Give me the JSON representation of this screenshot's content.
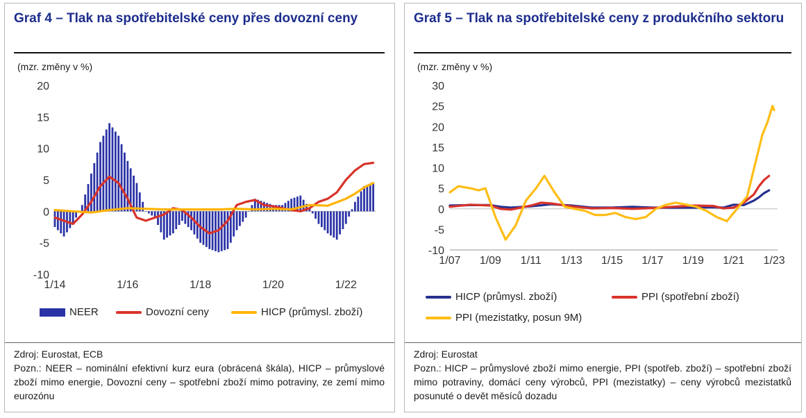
{
  "left": {
    "title": "Graf 4 – Tlak na spotřebitelské ceny přes dovozní ceny",
    "unit": "(mzr. změny v %)",
    "legend": [
      "NEER",
      "Dovozní ceny",
      "HICP (průmysl. zboží)"
    ],
    "source": "Zdroj: Eurostat, ECB",
    "note": "Pozn.: NEER – nominální efektivní kurz eura (obrácená škála), HICP – průmyslové zboží mimo energie, Dovozní ceny – spotřební zboží mimo potraviny, ze zemí mimo eurozónu"
  },
  "right": {
    "title": "Graf 5 – Tlak na spotřebitelské ceny z produkčního sektoru",
    "unit": "(mzr. změny v %)",
    "legend": [
      "HICP (průmysl. zboží)",
      "PPI (spotřební zboží)",
      "PPI (mezistatky, posun 9M)"
    ],
    "source": "Zdroj: Eurostat",
    "note": "Pozn.: HICP – průmyslové zboží mimo energie, PPI (spotřeb. zboží) – spotřební zboží mimo potraviny, domácí ceny výrobců, PPI (mezistatky) – ceny výrobců mezistatků posunuté o devět měsíců dozadu"
  },
  "colors": {
    "neer": "#2b33a6",
    "import": "#d8332a",
    "hicp_yellow": "#ffb300",
    "hicp_navy": "#27308f",
    "ppi_red": "#d8332a",
    "ppi_inter": "#ffbd14",
    "title": "#1c2c8c"
  },
  "chart_data": [
    {
      "type": "bar+line",
      "title": "Graf 4 – Tlak na spotřebitelské ceny přes dovozní ceny",
      "ylabel": "(mzr. změny v %)",
      "ylim": [
        -10,
        20
      ],
      "yticks": [
        -10,
        -5,
        0,
        5,
        10,
        15,
        20
      ],
      "xlim": [
        "2014-01",
        "2022-11"
      ],
      "xticks": [
        "1/14",
        "1/16",
        "1/18",
        "1/20",
        "1/22"
      ],
      "legend_position": "bottom",
      "series": [
        {
          "name": "NEER",
          "kind": "bar",
          "x": [
            "2014-01",
            "2014-04",
            "2014-07",
            "2014-10",
            "2015-01",
            "2015-04",
            "2015-07",
            "2015-10",
            "2016-01",
            "2016-04",
            "2016-07",
            "2016-10",
            "2017-01",
            "2017-04",
            "2017-07",
            "2017-10",
            "2018-01",
            "2018-04",
            "2018-07",
            "2018-10",
            "2019-01",
            "2019-04",
            "2019-07",
            "2019-10",
            "2020-01",
            "2020-04",
            "2020-07",
            "2020-10",
            "2021-01",
            "2021-04",
            "2021-07",
            "2021-10",
            "2022-01",
            "2022-04",
            "2022-07",
            "2022-10"
          ],
          "values": [
            -2.5,
            -4,
            -2,
            1,
            6,
            11,
            14,
            12,
            8,
            4.5,
            0,
            -1,
            -4.5,
            -3.5,
            -1.5,
            -3,
            -5,
            -6,
            -6.5,
            -6,
            -3,
            -1,
            2,
            1.5,
            1,
            1,
            2,
            2.5,
            0.5,
            -2,
            -3.5,
            -4.5,
            -2,
            1.5,
            4,
            4.5
          ]
        },
        {
          "name": "Dovozní ceny",
          "kind": "line",
          "x": [
            "2014-01",
            "2014-04",
            "2014-07",
            "2014-10",
            "2015-01",
            "2015-04",
            "2015-07",
            "2015-10",
            "2016-01",
            "2016-04",
            "2016-07",
            "2016-10",
            "2017-01",
            "2017-04",
            "2017-07",
            "2017-10",
            "2018-01",
            "2018-04",
            "2018-07",
            "2018-10",
            "2019-01",
            "2019-04",
            "2019-07",
            "2019-10",
            "2020-01",
            "2020-04",
            "2020-07",
            "2020-10",
            "2021-01",
            "2021-04",
            "2021-07",
            "2021-10",
            "2022-01",
            "2022-04",
            "2022-07",
            "2022-10"
          ],
          "values": [
            -1,
            -1.5,
            -2,
            -0.5,
            1.5,
            4,
            5.5,
            4.5,
            2,
            -1,
            -1.5,
            -1,
            -0.5,
            0.5,
            0.2,
            -1,
            -2.5,
            -3.5,
            -3,
            -1.5,
            1,
            1.5,
            1.8,
            1,
            0.8,
            0.5,
            0.2,
            0,
            0.5,
            1.5,
            2,
            3,
            5,
            6.5,
            7.5,
            7.7
          ]
        },
        {
          "name": "HICP (průmysl. zboží)",
          "kind": "line",
          "x": [
            "2014-01",
            "2014-07",
            "2015-01",
            "2015-07",
            "2016-01",
            "2016-07",
            "2017-01",
            "2017-07",
            "2018-01",
            "2018-07",
            "2019-01",
            "2019-07",
            "2020-01",
            "2020-07",
            "2021-01",
            "2021-07",
            "2022-01",
            "2022-04",
            "2022-07",
            "2022-10"
          ],
          "values": [
            0.2,
            0,
            -0.2,
            0.2,
            0.5,
            0.4,
            0.3,
            0.3,
            0.3,
            0.3,
            0.4,
            0.3,
            0.4,
            0.3,
            1,
            0.9,
            2,
            2.8,
            3.8,
            4.5
          ]
        }
      ]
    },
    {
      "type": "line",
      "title": "Graf 5 – Tlak na spotřebitelské ceny z produkčního sektoru",
      "ylabel": "(mzr. změny v %)",
      "ylim": [
        -10,
        30
      ],
      "yticks": [
        -10,
        -5,
        0,
        5,
        10,
        15,
        20,
        25,
        30
      ],
      "xlim": [
        "2007-01",
        "2023-03"
      ],
      "xticks": [
        "1/07",
        "1/09",
        "1/11",
        "1/13",
        "1/15",
        "1/17",
        "1/19",
        "1/21",
        "1/23"
      ],
      "legend_position": "bottom",
      "series": [
        {
          "name": "HICP (průmysl. zboží)",
          "x": [
            "2007-01",
            "2008-01",
            "2009-01",
            "2009-07",
            "2010-01",
            "2011-01",
            "2012-01",
            "2013-01",
            "2014-01",
            "2015-01",
            "2016-01",
            "2017-01",
            "2018-01",
            "2019-01",
            "2020-01",
            "2020-07",
            "2021-01",
            "2021-07",
            "2022-01",
            "2022-04",
            "2022-07",
            "2022-10"
          ],
          "values": [
            0.8,
            0.9,
            0.9,
            0.5,
            0.3,
            0.6,
            1.1,
            0.8,
            0.3,
            0.3,
            0.5,
            0.3,
            0.3,
            0.3,
            0.4,
            0.3,
            1,
            0.9,
            2,
            2.8,
            3.8,
            4.5
          ]
        },
        {
          "name": "PPI (spotřební zboží)",
          "x": [
            "2007-01",
            "2008-01",
            "2009-01",
            "2009-07",
            "2010-01",
            "2011-01",
            "2011-07",
            "2012-01",
            "2013-01",
            "2014-01",
            "2015-01",
            "2016-01",
            "2017-01",
            "2018-01",
            "2019-01",
            "2020-01",
            "2020-07",
            "2021-01",
            "2021-07",
            "2022-01",
            "2022-04",
            "2022-07",
            "2022-10"
          ],
          "values": [
            0.5,
            1,
            0.8,
            0,
            -0.2,
            0.8,
            1.5,
            1.3,
            0.6,
            0.1,
            0.2,
            0,
            0.2,
            0.5,
            0.8,
            0.7,
            0.1,
            0.3,
            1.5,
            3.5,
            5.5,
            7,
            8
          ]
        },
        {
          "name": "PPI (mezistatky, posun 9M)",
          "x": [
            "2007-01",
            "2007-06",
            "2008-01",
            "2008-06",
            "2008-10",
            "2009-04",
            "2009-10",
            "2010-04",
            "2010-10",
            "2011-04",
            "2011-09",
            "2012-03",
            "2012-09",
            "2013-03",
            "2013-09",
            "2014-03",
            "2014-09",
            "2015-03",
            "2015-09",
            "2016-03",
            "2016-09",
            "2017-03",
            "2017-09",
            "2018-03",
            "2018-09",
            "2019-03",
            "2019-09",
            "2020-03",
            "2020-09",
            "2021-03",
            "2021-09",
            "2022-03",
            "2022-06",
            "2022-09",
            "2022-12",
            "2023-01"
          ],
          "values": [
            4,
            5.5,
            5,
            4.5,
            5,
            -2,
            -7.5,
            -4,
            2,
            5,
            8,
            4,
            0.5,
            0,
            -0.5,
            -1.5,
            -1.5,
            -1,
            -2,
            -2.5,
            -2,
            0,
            1,
            1.5,
            1,
            0.5,
            -0.5,
            -2,
            -3,
            0,
            3,
            13,
            18,
            21,
            25,
            24
          ]
        }
      ]
    }
  ]
}
